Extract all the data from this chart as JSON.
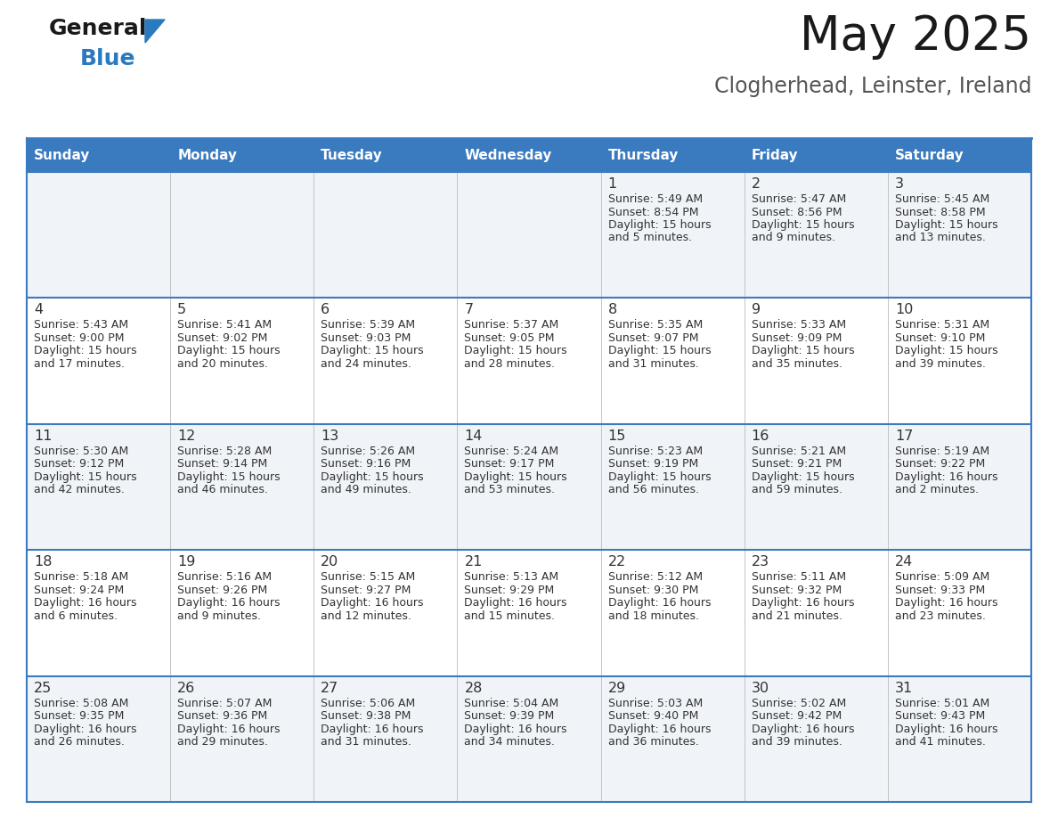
{
  "title": "May 2025",
  "subtitle": "Clogherhead, Leinster, Ireland",
  "header_color": "#3a7abf",
  "header_text_color": "#ffffff",
  "days_of_week": [
    "Sunday",
    "Monday",
    "Tuesday",
    "Wednesday",
    "Thursday",
    "Friday",
    "Saturday"
  ],
  "bg_color": "#ffffff",
  "row_even_color": "#f0f4f8",
  "row_odd_color": "#ffffff",
  "cell_border_color": "#3a7abf",
  "text_color": "#333333",
  "calendar": [
    [
      {
        "day": "",
        "sunrise": "",
        "sunset": "",
        "daylight": ""
      },
      {
        "day": "",
        "sunrise": "",
        "sunset": "",
        "daylight": ""
      },
      {
        "day": "",
        "sunrise": "",
        "sunset": "",
        "daylight": ""
      },
      {
        "day": "",
        "sunrise": "",
        "sunset": "",
        "daylight": ""
      },
      {
        "day": "1",
        "sunrise": "5:49 AM",
        "sunset": "8:54 PM",
        "daylight": "15 hours and 5 minutes."
      },
      {
        "day": "2",
        "sunrise": "5:47 AM",
        "sunset": "8:56 PM",
        "daylight": "15 hours and 9 minutes."
      },
      {
        "day": "3",
        "sunrise": "5:45 AM",
        "sunset": "8:58 PM",
        "daylight": "15 hours and 13 minutes."
      }
    ],
    [
      {
        "day": "4",
        "sunrise": "5:43 AM",
        "sunset": "9:00 PM",
        "daylight": "15 hours and 17 minutes."
      },
      {
        "day": "5",
        "sunrise": "5:41 AM",
        "sunset": "9:02 PM",
        "daylight": "15 hours and 20 minutes."
      },
      {
        "day": "6",
        "sunrise": "5:39 AM",
        "sunset": "9:03 PM",
        "daylight": "15 hours and 24 minutes."
      },
      {
        "day": "7",
        "sunrise": "5:37 AM",
        "sunset": "9:05 PM",
        "daylight": "15 hours and 28 minutes."
      },
      {
        "day": "8",
        "sunrise": "5:35 AM",
        "sunset": "9:07 PM",
        "daylight": "15 hours and 31 minutes."
      },
      {
        "day": "9",
        "sunrise": "5:33 AM",
        "sunset": "9:09 PM",
        "daylight": "15 hours and 35 minutes."
      },
      {
        "day": "10",
        "sunrise": "5:31 AM",
        "sunset": "9:10 PM",
        "daylight": "15 hours and 39 minutes."
      }
    ],
    [
      {
        "day": "11",
        "sunrise": "5:30 AM",
        "sunset": "9:12 PM",
        "daylight": "15 hours and 42 minutes."
      },
      {
        "day": "12",
        "sunrise": "5:28 AM",
        "sunset": "9:14 PM",
        "daylight": "15 hours and 46 minutes."
      },
      {
        "day": "13",
        "sunrise": "5:26 AM",
        "sunset": "9:16 PM",
        "daylight": "15 hours and 49 minutes."
      },
      {
        "day": "14",
        "sunrise": "5:24 AM",
        "sunset": "9:17 PM",
        "daylight": "15 hours and 53 minutes."
      },
      {
        "day": "15",
        "sunrise": "5:23 AM",
        "sunset": "9:19 PM",
        "daylight": "15 hours and 56 minutes."
      },
      {
        "day": "16",
        "sunrise": "5:21 AM",
        "sunset": "9:21 PM",
        "daylight": "15 hours and 59 minutes."
      },
      {
        "day": "17",
        "sunrise": "5:19 AM",
        "sunset": "9:22 PM",
        "daylight": "16 hours and 2 minutes."
      }
    ],
    [
      {
        "day": "18",
        "sunrise": "5:18 AM",
        "sunset": "9:24 PM",
        "daylight": "16 hours and 6 minutes."
      },
      {
        "day": "19",
        "sunrise": "5:16 AM",
        "sunset": "9:26 PM",
        "daylight": "16 hours and 9 minutes."
      },
      {
        "day": "20",
        "sunrise": "5:15 AM",
        "sunset": "9:27 PM",
        "daylight": "16 hours and 12 minutes."
      },
      {
        "day": "21",
        "sunrise": "5:13 AM",
        "sunset": "9:29 PM",
        "daylight": "16 hours and 15 minutes."
      },
      {
        "day": "22",
        "sunrise": "5:12 AM",
        "sunset": "9:30 PM",
        "daylight": "16 hours and 18 minutes."
      },
      {
        "day": "23",
        "sunrise": "5:11 AM",
        "sunset": "9:32 PM",
        "daylight": "16 hours and 21 minutes."
      },
      {
        "day": "24",
        "sunrise": "5:09 AM",
        "sunset": "9:33 PM",
        "daylight": "16 hours and 23 minutes."
      }
    ],
    [
      {
        "day": "25",
        "sunrise": "5:08 AM",
        "sunset": "9:35 PM",
        "daylight": "16 hours and 26 minutes."
      },
      {
        "day": "26",
        "sunrise": "5:07 AM",
        "sunset": "9:36 PM",
        "daylight": "16 hours and 29 minutes."
      },
      {
        "day": "27",
        "sunrise": "5:06 AM",
        "sunset": "9:38 PM",
        "daylight": "16 hours and 31 minutes."
      },
      {
        "day": "28",
        "sunrise": "5:04 AM",
        "sunset": "9:39 PM",
        "daylight": "16 hours and 34 minutes."
      },
      {
        "day": "29",
        "sunrise": "5:03 AM",
        "sunset": "9:40 PM",
        "daylight": "16 hours and 36 minutes."
      },
      {
        "day": "30",
        "sunrise": "5:02 AM",
        "sunset": "9:42 PM",
        "daylight": "16 hours and 39 minutes."
      },
      {
        "day": "31",
        "sunrise": "5:01 AM",
        "sunset": "9:43 PM",
        "daylight": "16 hours and 41 minutes."
      }
    ]
  ],
  "logo_general_color": "#1a1a1a",
  "logo_blue_color": "#2a7abf",
  "logo_triangle_color": "#2a7abf"
}
